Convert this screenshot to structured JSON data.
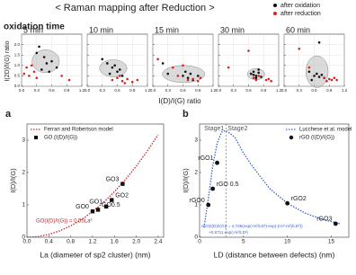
{
  "chart_data": [
    {
      "type": "scatter",
      "title": "< Raman mapping after Reduction >",
      "subtitle": "oxidation time",
      "xlabel": "I(D)/I(G) ratio",
      "ylabel": "I(2D)/I(G) ratio",
      "xlim": [
        0,
        1.2
      ],
      "ylim": [
        0,
        2.5
      ],
      "xticks": [
        {
          "value": 0,
          "label": "0.0"
        },
        {
          "value": 0.3,
          "label": "0.3"
        },
        {
          "value": 0.6,
          "label": "0.6"
        },
        {
          "value": 0.9,
          "label": "0.9"
        },
        {
          "value": 1.2,
          "label": "1.2"
        }
      ],
      "yticks": [
        {
          "value": 0,
          "label": "0.0"
        },
        {
          "value": 0.5,
          "label": "0.5"
        },
        {
          "value": 1,
          "label": "1.0"
        },
        {
          "value": 1.5,
          "label": "1.5"
        },
        {
          "value": 2,
          "label": "2.0"
        }
      ],
      "grid": true,
      "panels": [
        {
          "title": "5 min",
          "series": [
            {
              "name": "after oxidation",
              "color": "#111111",
              "x": [
                0.3,
                0.45,
                0.5,
                0.6,
                0.7,
                0.55,
                0.4,
                0.35
              ],
              "values": [
                1.6,
                1.4,
                1.1,
                1.2,
                0.9,
                0.7,
                0.8,
                1.9
              ]
            },
            {
              "name": "after reduction",
              "color": "#e02020",
              "x": [
                0.05,
                0.1,
                0.15,
                0.2,
                0.3,
                0.8,
                0.95,
                0.25
              ],
              "values": [
                0.6,
                0.9,
                0.5,
                1.0,
                0.4,
                0.5,
                0.3,
                0.7
              ]
            }
          ]
        },
        {
          "title": "10 min",
          "series": [
            {
              "name": "after oxidation",
              "color": "#111111",
              "x": [
                0.3,
                0.4,
                0.5,
                0.6,
                0.55,
                0.45,
                0.7,
                0.65
              ],
              "values": [
                1.3,
                1.1,
                0.9,
                0.7,
                1.0,
                0.6,
                0.5,
                0.8
              ]
            },
            {
              "name": "after reduction",
              "color": "#e02020",
              "x": [
                0.5,
                0.6,
                0.7,
                0.8,
                0.9,
                1.0,
                0.65,
                0.75
              ],
              "values": [
                0.3,
                0.4,
                0.25,
                0.35,
                0.2,
                0.3,
                0.5,
                0.15
              ]
            }
          ]
        },
        {
          "title": "15 min",
          "series": [
            {
              "name": "after oxidation",
              "color": "#111111",
              "x": [
                0.2,
                0.6,
                0.65,
                0.7,
                0.75,
                0.8,
                0.3,
                0.9
              ],
              "values": [
                1.1,
                0.5,
                0.7,
                0.4,
                0.6,
                0.3,
                0.6,
                0.5
              ]
            },
            {
              "name": "after reduction",
              "color": "#e02020",
              "x": [
                0.1,
                0.4,
                0.6,
                0.7,
                0.8,
                0.9,
                0.95,
                0.5
              ],
              "values": [
                1.3,
                0.9,
                1.0,
                0.3,
                0.35,
                0.25,
                0.4,
                0.5
              ]
            }
          ]
        },
        {
          "title": "30 min",
          "series": [
            {
              "name": "after oxidation",
              "color": "#111111",
              "x": [
                0.65,
                0.7,
                0.75,
                0.8,
                0.85,
                0.75,
                0.7,
                0.8
              ],
              "values": [
                0.6,
                0.7,
                0.5,
                0.65,
                0.45,
                0.4,
                0.55,
                0.8
              ]
            },
            {
              "name": "after reduction",
              "color": "#e02020",
              "x": [
                0.2,
                0.7,
                0.75,
                0.8,
                0.95,
                1.0,
                1.05,
                0.6
              ],
              "values": [
                0.9,
                0.4,
                0.3,
                0.5,
                0.3,
                0.35,
                0.25,
                1.7
              ]
            }
          ]
        },
        {
          "title": "60 min",
          "series": [
            {
              "name": "after oxidation",
              "color": "#111111",
              "x": [
                0.5,
                0.6,
                0.65,
                0.7,
                0.75,
                0.8,
                0.55,
                0.7
              ],
              "values": [
                0.7,
                0.5,
                0.6,
                0.45,
                0.55,
                0.4,
                0.3,
                2.1
              ]
            },
            {
              "name": "after reduction",
              "color": "#e02020",
              "x": [
                0.3,
                0.9,
                0.95,
                1.0,
                1.05,
                0.8,
                0.85,
                0.5
              ],
              "values": [
                1.8,
                0.35,
                0.3,
                0.4,
                0.3,
                0.4,
                0.25,
                0.9
              ]
            }
          ]
        }
      ]
    },
    {
      "type": "line",
      "label": "a",
      "xlabel": "La (diameter of sp2 cluster) (nm)",
      "ylabel": "I(D)/I(G)",
      "xlim": [
        0,
        2.5
      ],
      "ylim": [
        0,
        3.5
      ],
      "xticks": [
        {
          "value": 0,
          "label": "0.0"
        },
        {
          "value": 0.4,
          "label": "0.4"
        },
        {
          "value": 0.8,
          "label": "0.8"
        },
        {
          "value": 1.2,
          "label": "1.2"
        },
        {
          "value": 1.6,
          "label": "1.6"
        },
        {
          "value": 2,
          "label": "2.0"
        },
        {
          "value": 2.4,
          "label": "2.4"
        }
      ],
      "yticks": [
        0,
        1,
        2,
        3
      ],
      "annotation": "GO(I(D)/I(G)) = 0.55La²",
      "legend": "upper left",
      "series": [
        {
          "name": "Ferrari and Robertson model",
          "color": "#c0282d",
          "style": "dotted",
          "x": [
            0,
            0.2,
            0.4,
            0.6,
            0.8,
            1.0,
            1.2,
            1.4,
            1.6,
            1.8,
            2.0,
            2.2,
            2.4
          ],
          "values": [
            0,
            0.022,
            0.088,
            0.198,
            0.352,
            0.55,
            0.792,
            1.078,
            1.408,
            1.782,
            2.2,
            2.662,
            3.168
          ]
        },
        {
          "name": "GO (I(D)/I(G))",
          "color": "#111111",
          "marker": "square",
          "x": [
            1.2,
            1.3,
            1.45,
            1.55,
            1.75
          ],
          "values": [
            0.8,
            0.85,
            0.95,
            1.15,
            1.65
          ],
          "point_labels": [
            "GO0",
            "GO0.5",
            "GO1",
            "GO2",
            "GO3"
          ]
        }
      ]
    },
    {
      "type": "line",
      "label": "b",
      "xlabel": "LD (distance between defects) (nm)",
      "ylabel": "I(D)/I(G)",
      "xlim": [
        0,
        17
      ],
      "ylim": [
        0,
        3.5
      ],
      "xticks": [
        0,
        5,
        10,
        15
      ],
      "yticks": [
        0,
        1,
        2,
        3
      ],
      "stage_labels": [
        "Stage1",
        "Stage2"
      ],
      "stage_boundary": 3,
      "annotations": [
        "rGO(I(D)/I(G)) = 4.725(exp(-rs²/LD²)-exp(-(rA²-rs²)/LD²))",
        "+0.8711·exp(-rs²/LD²)"
      ],
      "legend": "upper right",
      "series": [
        {
          "name": "Lucchese et al. model",
          "color": "#3a5fcd",
          "style": "dotted",
          "x": [
            0.5,
            1,
            1.5,
            2,
            2.5,
            3,
            4,
            5,
            6,
            8,
            10,
            12,
            14,
            16
          ],
          "values": [
            0.3,
            1.2,
            2.2,
            2.9,
            3.25,
            3.3,
            3.1,
            2.6,
            2.2,
            1.5,
            1.05,
            0.75,
            0.55,
            0.42
          ]
        },
        {
          "name": "rGO (I(D)/I(G))",
          "color": "#111111",
          "marker": "circle",
          "x": [
            1,
            1.5,
            2,
            10,
            15.5
          ],
          "values": [
            1.0,
            1.5,
            2.3,
            1.05,
            0.42
          ],
          "point_labels": [
            "rGO0",
            "rGO 0.5",
            "rGO1",
            "rGO2",
            "rGO3"
          ]
        }
      ]
    }
  ]
}
